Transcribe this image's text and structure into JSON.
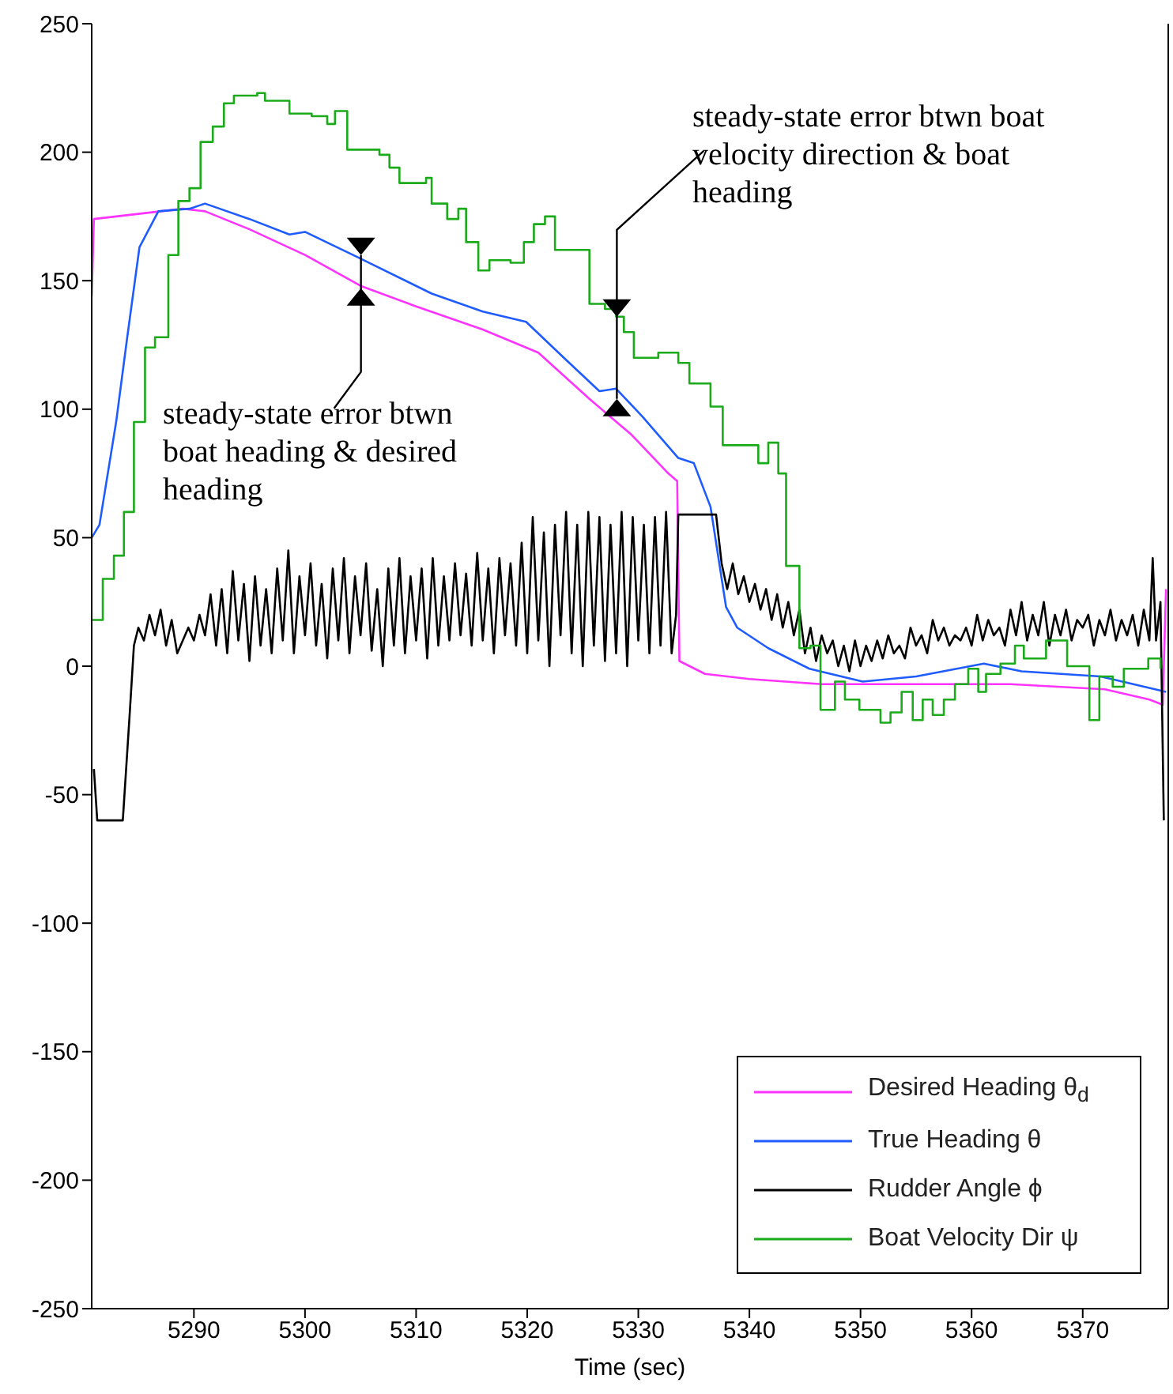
{
  "chart_data": {
    "type": "line",
    "xlabel": "Time (sec)",
    "xlim": [
      5280.8,
      5377.7
    ],
    "xticks": [
      5290,
      5300,
      5310,
      5320,
      5330,
      5340,
      5350,
      5360,
      5370
    ],
    "ylim": [
      -250,
      250
    ],
    "yticks": [
      -250,
      -200,
      -150,
      -100,
      -50,
      0,
      50,
      100,
      150,
      200,
      250
    ],
    "grid": false,
    "legend": "bottom right",
    "marker": "none",
    "line_style": "solid",
    "annotations": [
      {
        "text": "steady-state error btwn boat heading & desired heading",
        "x": 5305,
        "y": 160
      },
      {
        "text": "steady-state error btwn boat velocity direction & boat heading",
        "x": 5328,
        "y": 104
      }
    ],
    "series": [
      {
        "name": "Desired Heading θ$_{d}$",
        "color": "#ff33ff",
        "x": [
          5280.8,
          5281,
          5285,
          5289,
          5291,
          5295,
          5300,
          5305,
          5310,
          5316,
          5321,
          5325.6,
          5329.4,
          5332.7,
          5333.5,
          5333.7,
          5336,
          5340,
          5346.5,
          5363.5,
          5372,
          5376,
          5377.2,
          5377.5
        ],
        "values": [
          144,
          174,
          176,
          178,
          177,
          170,
          160,
          148,
          140,
          131,
          122,
          104,
          90,
          75,
          72,
          2,
          -3,
          -5,
          -7,
          -7,
          -9,
          -13,
          -15,
          30
        ]
      },
      {
        "name": "True Heading θ",
        "color": "#1f5cff",
        "x": [
          5280.8,
          5281.5,
          5283,
          5284,
          5285.1,
          5286.8,
          5289.6,
          5291,
          5295,
          5298.6,
          5300,
          5304.8,
          5311.4,
          5316,
          5319.9,
          5323.3,
          5326.5,
          5328,
          5330.4,
          5333.6,
          5335,
          5336.5,
          5337.9,
          5338.9,
          5341.7,
          5345.4,
          5350.2,
          5355,
          5361.1,
          5364.5,
          5371.6,
          5377.5
        ],
        "values": [
          50,
          55,
          95,
          128,
          163,
          177,
          178,
          180,
          174,
          168,
          169,
          159,
          145,
          138,
          134,
          120,
          107,
          108,
          97,
          81,
          79,
          62,
          23,
          15,
          7,
          -1,
          -6,
          -4,
          1,
          -2,
          -4,
          -10
        ]
      },
      {
        "name": "Rudder Angle ϕ",
        "color": "#000000",
        "x": [
          5281,
          5281.3,
          5283.6,
          5284.2,
          5284.6,
          5285,
          5285.5,
          5286,
          5286.5,
          5287,
          5287.5,
          5288,
          5288.5,
          5289,
          5289.5,
          5290,
          5290.5,
          5291,
          5291.5,
          5292,
          5292.5,
          5293,
          5293.5,
          5294,
          5294.5,
          5295,
          5295.5,
          5296,
          5296.5,
          5297,
          5297.5,
          5298,
          5298.5,
          5299,
          5299.5,
          5300,
          5300.5,
          5301,
          5301.5,
          5302,
          5302.5,
          5303,
          5303.5,
          5304,
          5304.5,
          5305,
          5305.5,
          5306,
          5306.5,
          5307,
          5307.5,
          5308,
          5308.5,
          5309,
          5309.5,
          5310,
          5310.5,
          5311,
          5311.5,
          5312,
          5312.5,
          5313,
          5313.5,
          5314,
          5314.5,
          5315,
          5315.5,
          5316,
          5316.5,
          5317,
          5317.5,
          5318,
          5318.5,
          5319,
          5319.5,
          5320,
          5320.5,
          5321,
          5321.5,
          5322,
          5322.5,
          5323,
          5323.5,
          5324,
          5324.5,
          5325,
          5325.5,
          5326,
          5326.5,
          5327,
          5327.5,
          5328,
          5328.5,
          5329,
          5329.5,
          5330,
          5330.5,
          5331,
          5331.5,
          5332,
          5332.5,
          5333,
          5333.4,
          5333.6,
          5337,
          5337.5,
          5338,
          5338.5,
          5339,
          5339.5,
          5340,
          5340.5,
          5341,
          5341.5,
          5342,
          5342.5,
          5343,
          5343.5,
          5344,
          5344.5,
          5345,
          5345.5,
          5346,
          5346.5,
          5347,
          5347.5,
          5348,
          5348.5,
          5349,
          5349.5,
          5350,
          5350.5,
          5351,
          5351.5,
          5352,
          5352.5,
          5353,
          5353.5,
          5354,
          5354.5,
          5355,
          5355.5,
          5356,
          5356.5,
          5357,
          5357.5,
          5358,
          5358.5,
          5359,
          5359.5,
          5360,
          5360.5,
          5361,
          5361.5,
          5362,
          5362.5,
          5363,
          5363.5,
          5364,
          5364.5,
          5365,
          5365.5,
          5366,
          5366.5,
          5367,
          5367.5,
          5368,
          5368.5,
          5369,
          5369.5,
          5370,
          5370.5,
          5371,
          5371.5,
          5372,
          5372.5,
          5373,
          5373.5,
          5374,
          5374.5,
          5375,
          5375.5,
          5376,
          5376.3,
          5376.6,
          5377,
          5377.3
        ],
        "values": [
          -40,
          -60,
          -60,
          -20,
          8,
          15,
          10,
          20,
          12,
          22,
          8,
          18,
          5,
          10,
          15,
          10,
          20,
          12,
          28,
          8,
          30,
          5,
          37,
          10,
          32,
          2,
          35,
          8,
          30,
          5,
          38,
          10,
          45,
          5,
          35,
          12,
          40,
          8,
          32,
          3,
          38,
          10,
          42,
          5,
          35,
          12,
          40,
          6,
          30,
          0,
          38,
          8,
          42,
          5,
          35,
          10,
          38,
          3,
          42,
          8,
          35,
          10,
          40,
          12,
          36,
          8,
          44,
          10,
          38,
          5,
          42,
          12,
          40,
          8,
          48,
          5,
          58,
          10,
          52,
          0,
          55,
          12,
          60,
          5,
          55,
          0,
          60,
          8,
          58,
          2,
          55,
          5,
          60,
          0,
          58,
          10,
          55,
          5,
          58,
          8,
          60,
          5,
          20,
          59,
          59,
          40,
          30,
          40,
          28,
          35,
          25,
          32,
          22,
          30,
          18,
          28,
          15,
          25,
          12,
          22,
          5,
          15,
          2,
          12,
          5,
          10,
          0,
          8,
          -2,
          10,
          0,
          8,
          2,
          10,
          3,
          12,
          5,
          8,
          3,
          15,
          8,
          12,
          5,
          18,
          10,
          15,
          8,
          12,
          10,
          15,
          8,
          20,
          10,
          18,
          12,
          15,
          8,
          22,
          12,
          25,
          10,
          20,
          12,
          25,
          8,
          20,
          12,
          22,
          10,
          18,
          15,
          20,
          8,
          18,
          12,
          22,
          10,
          18,
          12,
          20,
          8,
          22,
          10,
          42,
          10,
          25,
          -60
        ]
      },
      {
        "name": "Boat Velocity Dir ψ",
        "type": "step",
        "color": "#1aaa1a",
        "x": [
          5280.8,
          5281.8,
          5282.8,
          5283.7,
          5284.6,
          5285.6,
          5286.5,
          5287.7,
          5288.6,
          5289.6,
          5290.6,
          5291.7,
          5292.7,
          5293.6,
          5295.7,
          5296.4,
          5298.6,
          5300.6,
          5302,
          5302.7,
          5303.8,
          5306.7,
          5307.6,
          5308.5,
          5310.9,
          5311.4,
          5312.8,
          5313.8,
          5314.5,
          5315.6,
          5316.6,
          5318.5,
          5319.7,
          5320.6,
          5321.6,
          5322.5,
          5325.6,
          5327,
          5328,
          5328.7,
          5329.6,
          5331.8,
          5333.6,
          5334.6,
          5336.5,
          5337.6,
          5340.8,
          5341.7,
          5342.6,
          5343.3,
          5344.5,
          5345.5,
          5346.4,
          5347.7,
          5348.6,
          5349.9,
          5351.8,
          5352.7,
          5353.7,
          5354.7,
          5355.6,
          5356.5,
          5357.5,
          5358.5,
          5359.7,
          5360.6,
          5361.3,
          5362.6,
          5363.9,
          5364.7,
          5366.7,
          5368.6,
          5370.6,
          5371.5,
          5372.7,
          5373.7,
          5375.9,
          5377
        ],
        "values": [
          18,
          34,
          43,
          60,
          95,
          124,
          128,
          160,
          181,
          186,
          204,
          210,
          219,
          222,
          223,
          220,
          215,
          214,
          211,
          216,
          201,
          199,
          194,
          188,
          190,
          180,
          174,
          178,
          165,
          154,
          158,
          157,
          165,
          172,
          175,
          162,
          141,
          139,
          136,
          130,
          120,
          122,
          118,
          110,
          101,
          86,
          79,
          87,
          75,
          39,
          7,
          8,
          -17,
          -6,
          -13,
          -17,
          -22,
          -18,
          -10,
          -21,
          -13,
          -19,
          -13,
          -7,
          -1,
          -10,
          -3,
          1,
          8,
          3,
          10,
          0,
          -21,
          -4,
          -8,
          -1,
          3,
          -1
        ]
      }
    ]
  }
}
